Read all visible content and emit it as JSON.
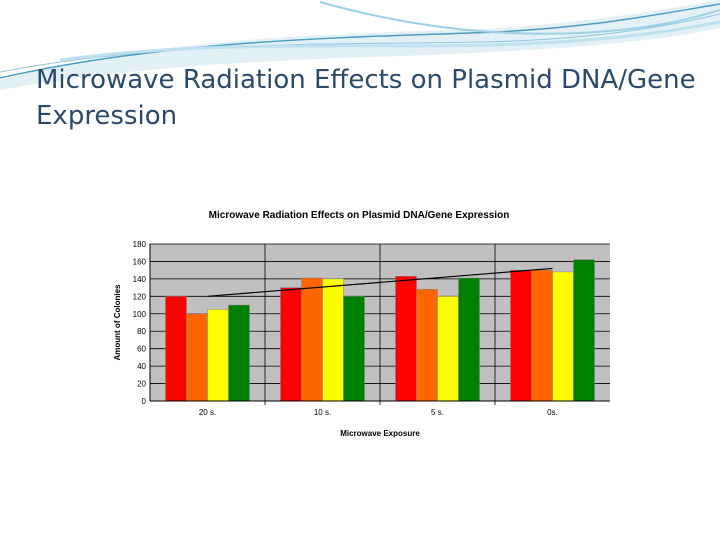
{
  "slide": {
    "title": "Microwave Radiation Effects on Plasmid DNA/Gene Expression"
  },
  "colors": {
    "title": "#2b4a6b",
    "wave_dark": "#4a9ec4",
    "wave_light": "#bfe0ee",
    "plot_bg": "#c0c0c0",
    "series": [
      "#ff0000",
      "#ff6600",
      "#ffff00",
      "#008000"
    ]
  },
  "chart_data": {
    "type": "bar",
    "title": "Microwave Radiation Effects on Plasmid DNA/Gene Expression",
    "xlabel": "Microwave Exposure",
    "ylabel": "Amount of Colonies",
    "categories": [
      "20 s.",
      "10 s.",
      "5 s.",
      "0s."
    ],
    "series": [
      {
        "values": [
          120,
          130,
          143,
          150
        ]
      },
      {
        "values": [
          100,
          141,
          128,
          150
        ]
      },
      {
        "values": [
          105,
          140,
          120,
          148
        ]
      },
      {
        "values": [
          110,
          120,
          141,
          162
        ]
      }
    ],
    "yticks": [
      0,
      20,
      40,
      60,
      80,
      100,
      120,
      140,
      160,
      180
    ],
    "ylim": [
      0,
      180
    ],
    "trendline": {
      "start": 120,
      "end": 152
    },
    "grid": true,
    "legend": "none"
  }
}
